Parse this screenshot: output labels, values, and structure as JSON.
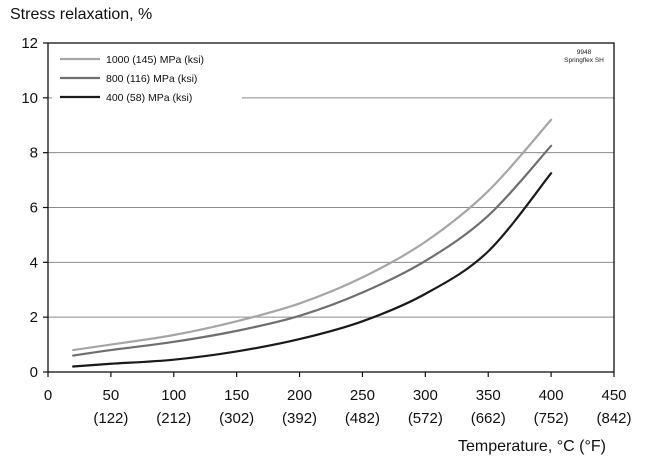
{
  "chart_data": {
    "type": "line",
    "title": "",
    "ylabel": "Stress relaxation, %",
    "xlabel": "Temperature, °C (°F)",
    "xlim": [
      0,
      450
    ],
    "ylim": [
      0,
      12
    ],
    "grid": "horizontal",
    "legend_position": "top-left",
    "x_ticks": [
      {
        "value": 0,
        "label": "0",
        "sub": ""
      },
      {
        "value": 50,
        "label": "50",
        "sub": "(122)"
      },
      {
        "value": 100,
        "label": "100",
        "sub": "(212)"
      },
      {
        "value": 150,
        "label": "150",
        "sub": "(302)"
      },
      {
        "value": 200,
        "label": "200",
        "sub": "(392)"
      },
      {
        "value": 250,
        "label": "250",
        "sub": "(482)"
      },
      {
        "value": 300,
        "label": "300",
        "sub": "(572)"
      },
      {
        "value": 350,
        "label": "350",
        "sub": "(662)"
      },
      {
        "value": 400,
        "label": "400",
        "sub": "(752)"
      },
      {
        "value": 450,
        "label": "450",
        "sub": "(842)"
      }
    ],
    "y_ticks": [
      0,
      2,
      4,
      6,
      8,
      10,
      12
    ],
    "series": [
      {
        "name": "1000 (145) MPa (ksi)",
        "color": "#a6a6a6",
        "x": [
          20,
          50,
          100,
          150,
          200,
          250,
          300,
          350,
          400
        ],
        "y": [
          0.8,
          1.0,
          1.35,
          1.85,
          2.5,
          3.45,
          4.75,
          6.6,
          9.2
        ]
      },
      {
        "name": "800 (116) MPa (ksi)",
        "color": "#6f6f6f",
        "x": [
          20,
          50,
          100,
          150,
          200,
          250,
          300,
          350,
          400
        ],
        "y": [
          0.6,
          0.8,
          1.1,
          1.5,
          2.05,
          2.9,
          4.05,
          5.7,
          8.25
        ]
      },
      {
        "name": "400 (58) MPa (ksi)",
        "color": "#1a1a1a",
        "x": [
          20,
          50,
          100,
          150,
          200,
          250,
          300,
          350,
          400
        ],
        "y": [
          0.2,
          0.3,
          0.45,
          0.75,
          1.2,
          1.85,
          2.85,
          4.4,
          7.25
        ]
      }
    ],
    "annotation": [
      "9948",
      "Springflex SH"
    ]
  }
}
